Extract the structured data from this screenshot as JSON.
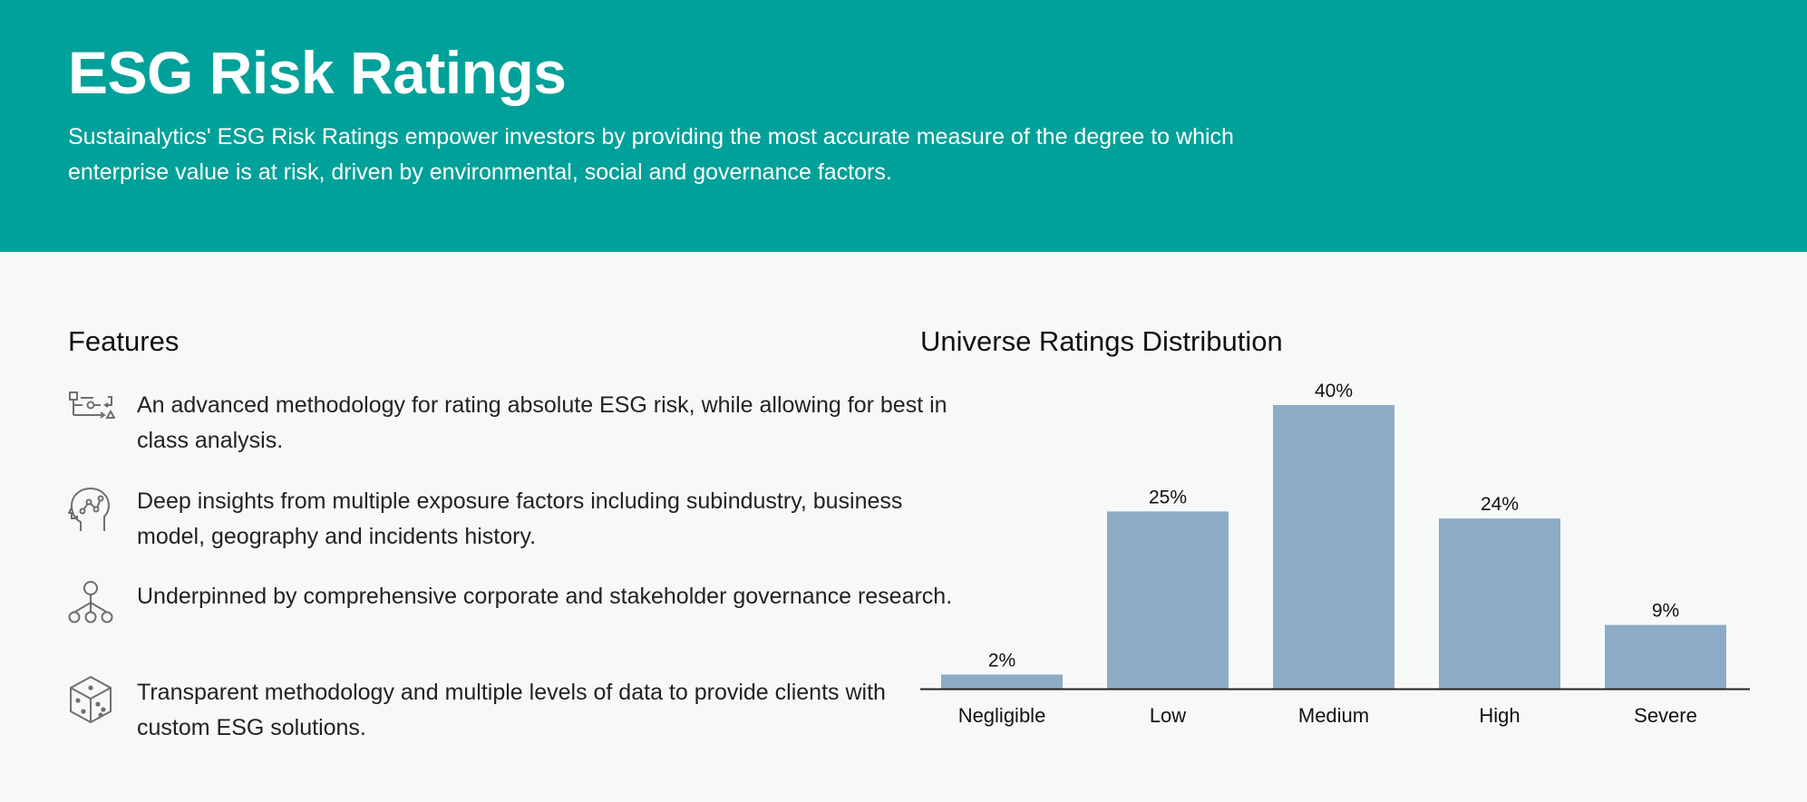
{
  "header": {
    "title": "ESG Risk Ratings",
    "subtitle": "Sustainalytics' ESG Risk Ratings empower investors by providing the most accurate measure of the degree to which enterprise value is at risk, driven by environmental, social and governance factors."
  },
  "features": {
    "heading": "Features",
    "items": [
      {
        "icon": "workflow-icon",
        "text": "An advanced methodology for rating absolute ESG risk, while allowing for best in class analysis."
      },
      {
        "icon": "head-network-icon",
        "text": "Deep insights from multiple exposure factors including subindustry, business model, geography and incidents history."
      },
      {
        "icon": "hierarchy-icon",
        "text": "Underpinned by comprehensive corporate and stakeholder governance research."
      },
      {
        "icon": "cube-icon",
        "text": "Transparent methodology and multiple levels of data to provide clients with custom ESG solutions."
      }
    ]
  },
  "colors": {
    "header_bg": "#00a19a",
    "bar": "#8eabc6",
    "icon_stroke": "#6f6f6f"
  },
  "chart_data": {
    "type": "bar",
    "title": "Universe Ratings Distribution",
    "categories": [
      "Negligible",
      "Low",
      "Medium",
      "High",
      "Severe"
    ],
    "values": [
      2,
      25,
      40,
      24,
      9
    ],
    "value_labels": [
      "2%",
      "25%",
      "40%",
      "24%",
      "9%"
    ],
    "xlabel": "",
    "ylabel": "",
    "ylim": [
      0,
      40
    ],
    "grid": false,
    "legend": "none"
  }
}
